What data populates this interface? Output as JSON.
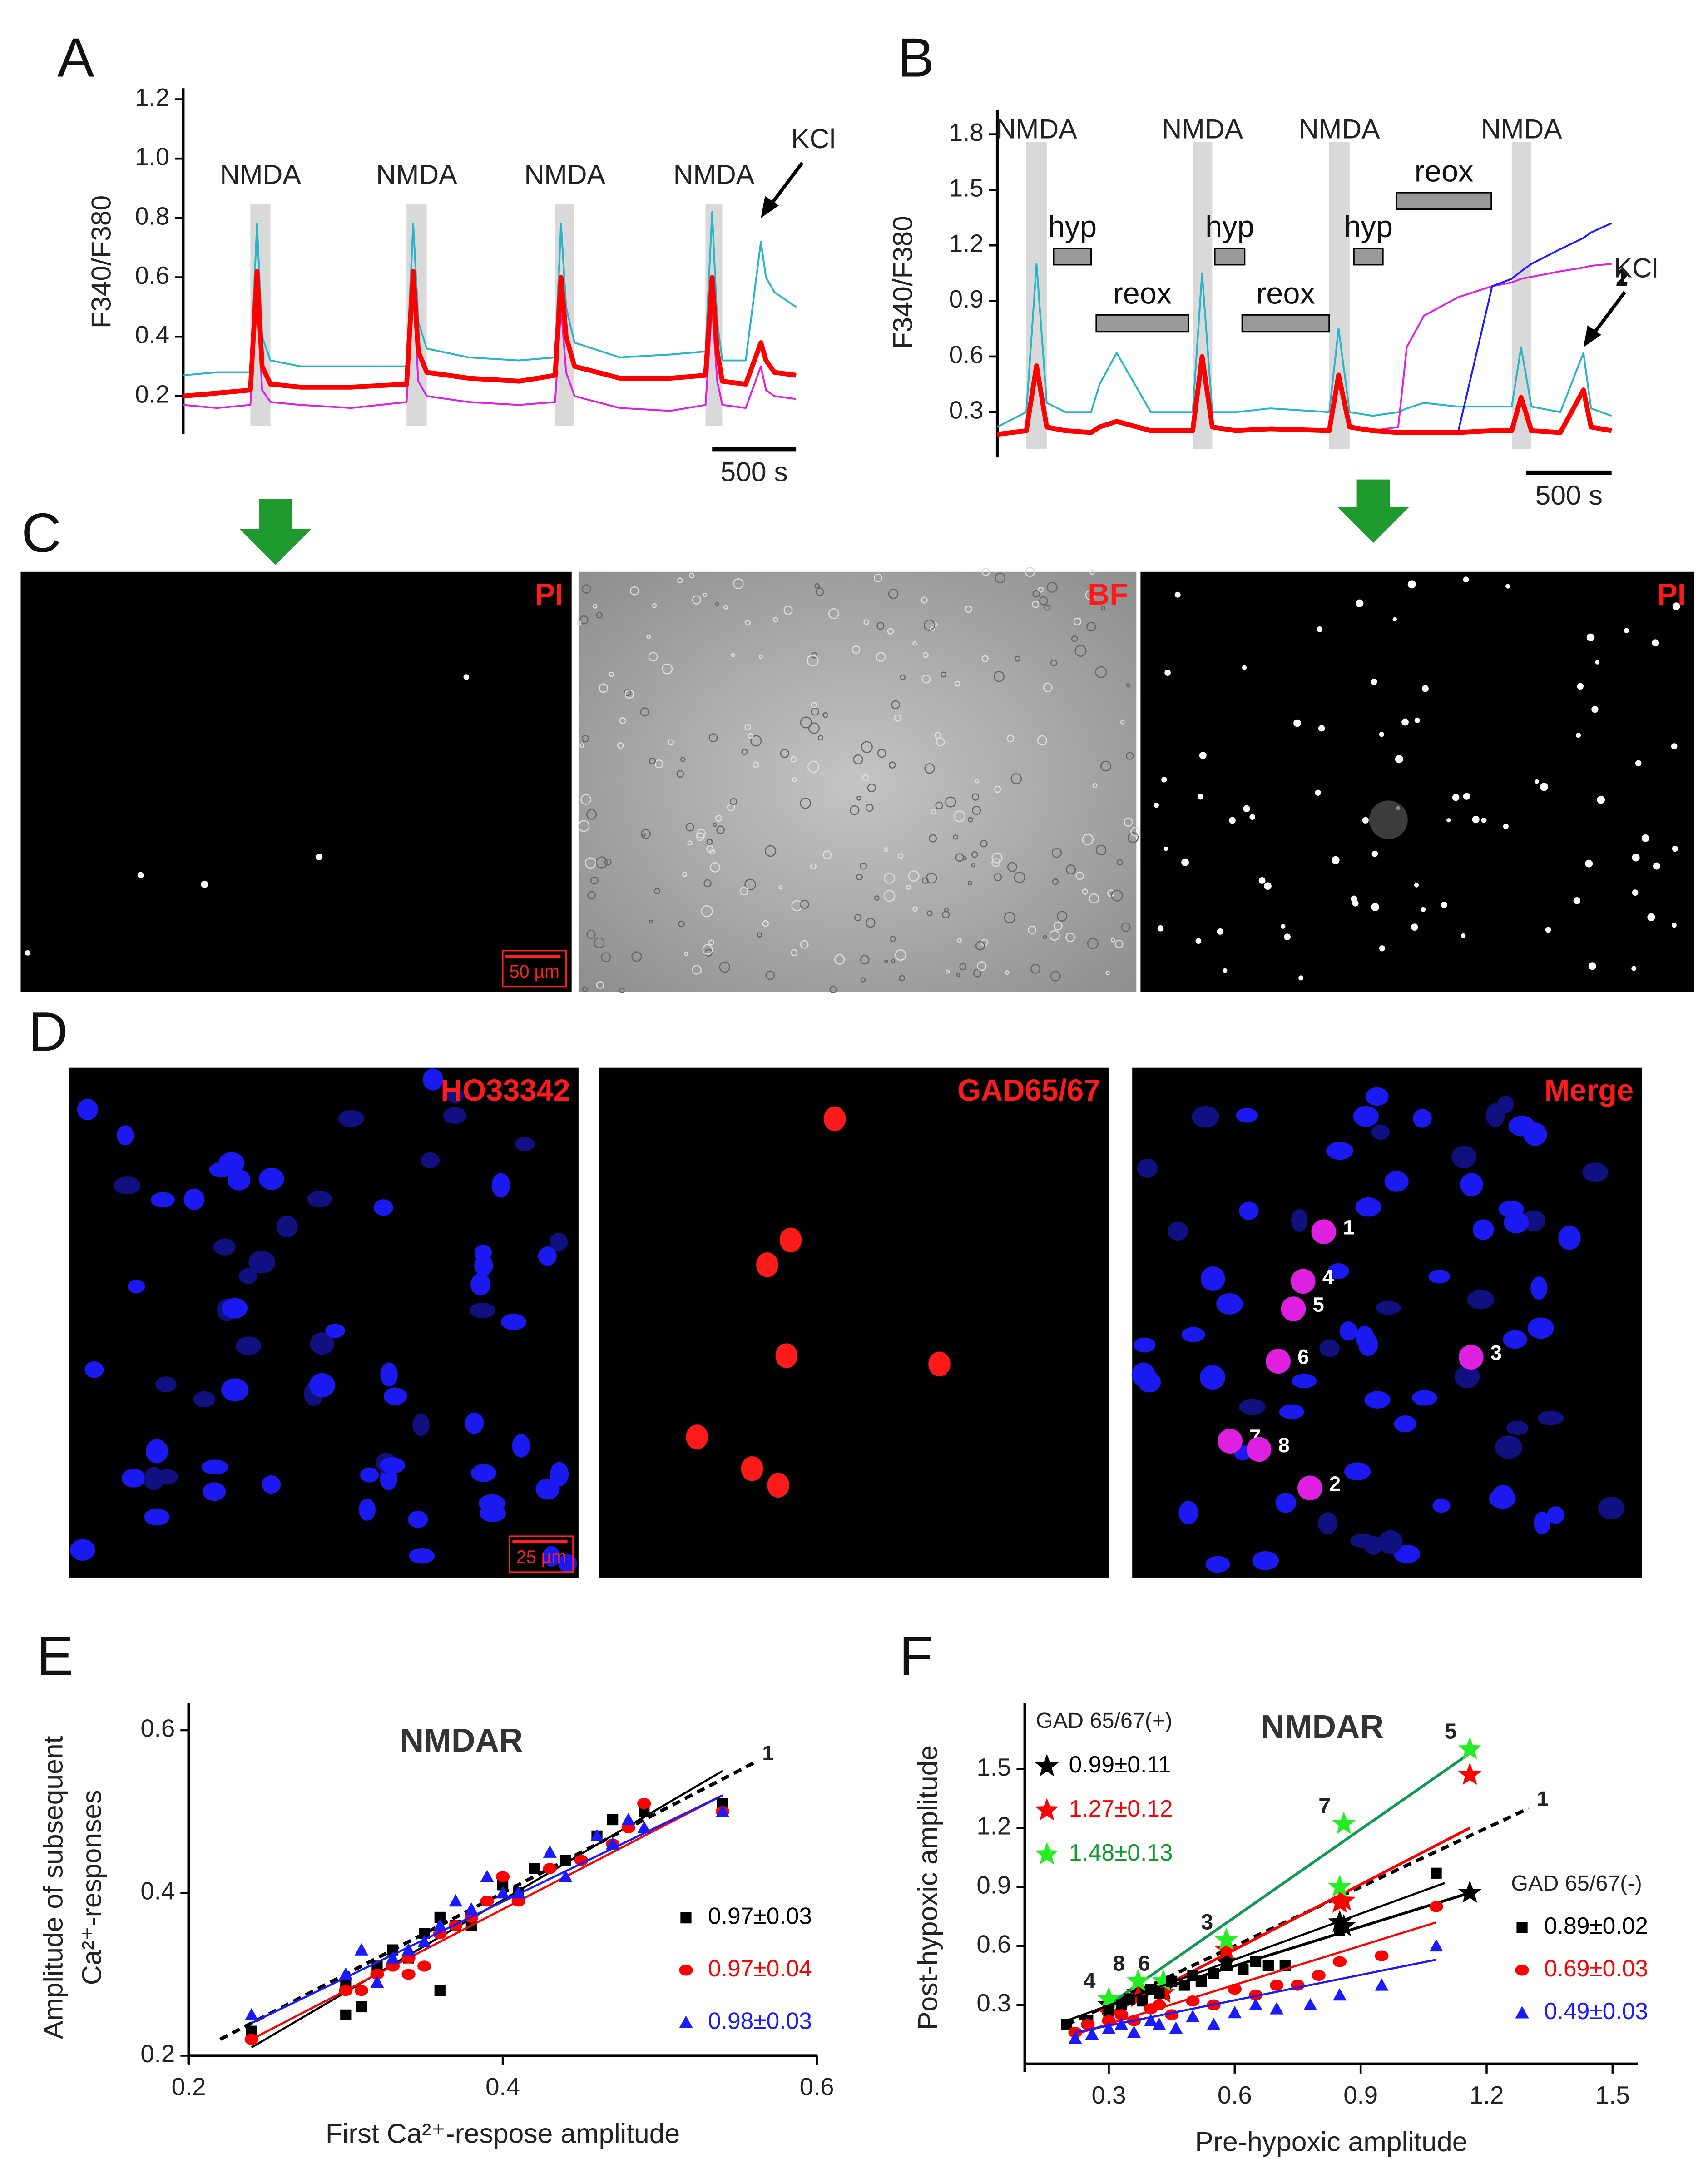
{
  "chart_data": [
    {
      "type": "line",
      "panel": "A",
      "y_label": "F340/F380",
      "xlim": [
        0,
        3650
      ],
      "ylim": [
        0.1,
        1.2
      ],
      "yticks": [
        0.2,
        0.4,
        0.6,
        0.8,
        {
          "value": 1,
          "label": "1.0"
        },
        1.2
      ],
      "x": [
        0,
        200,
        400,
        440,
        470,
        520,
        700,
        1000,
        1330,
        1370,
        1400,
        1450,
        1700,
        2000,
        2215,
        2250,
        2280,
        2330,
        2600,
        2900,
        3110,
        3150,
        3180,
        3210,
        3350,
        3440,
        3470,
        3520,
        3650
      ],
      "series": [
        {
          "color": "#27b5c9",
          "values": [
            0.27,
            0.28,
            0.28,
            0.78,
            0.4,
            0.32,
            0.3,
            0.3,
            0.3,
            0.78,
            0.45,
            0.36,
            0.33,
            0.32,
            0.33,
            0.78,
            0.5,
            0.38,
            0.33,
            0.34,
            0.35,
            0.82,
            0.45,
            0.32,
            0.32,
            0.72,
            0.6,
            0.55,
            0.5
          ]
        },
        {
          "color": "#e020e0",
          "values": [
            0.17,
            0.16,
            0.17,
            0.55,
            0.22,
            0.18,
            0.17,
            0.16,
            0.18,
            0.55,
            0.25,
            0.2,
            0.18,
            0.17,
            0.18,
            0.5,
            0.28,
            0.2,
            0.16,
            0.15,
            0.17,
            0.5,
            0.25,
            0.17,
            0.16,
            0.3,
            0.22,
            0.2,
            0.19
          ]
        },
        {
          "color": "#ff0000",
          "values": [
            0.2,
            0.21,
            0.22,
            0.62,
            0.3,
            0.24,
            0.23,
            0.23,
            0.24,
            0.62,
            0.35,
            0.28,
            0.26,
            0.25,
            0.27,
            0.6,
            0.4,
            0.3,
            0.26,
            0.26,
            0.27,
            0.6,
            0.35,
            0.25,
            0.24,
            0.38,
            0.32,
            0.28,
            0.27
          ]
        }
      ],
      "stimuli": [
        {
          "label": "NMDA",
          "start": 400,
          "end": 520
        },
        {
          "label": "NMDA",
          "start": 1330,
          "end": 1450
        },
        {
          "label": "NMDA",
          "start": 2215,
          "end": 2330
        },
        {
          "label": "NMDA",
          "start": 3110,
          "end": 3210
        }
      ],
      "arrows": [
        {
          "label": "KCl",
          "x": 3440,
          "y": 0.8
        }
      ],
      "scale_bar": {
        "value": 500,
        "label": "500 s"
      }
    },
    {
      "type": "line",
      "panel": "B",
      "y_label": "F340/F380",
      "xlim": [
        0,
        3600
      ],
      "ylim": [
        0.1,
        1.87
      ],
      "yticks": [
        0.3,
        0.6,
        0.9,
        1.2,
        1.5,
        1.8
      ],
      "x": [
        0,
        170,
        230,
        290,
        400,
        550,
        600,
        700,
        900,
        1145,
        1200,
        1260,
        1400,
        1600,
        1945,
        2000,
        2065,
        2200,
        2350,
        2400,
        2500,
        2700,
        2900,
        3015,
        3070,
        3130,
        3300,
        3435,
        3480,
        3600
      ],
      "series": [
        {
          "color": "#27b5c9",
          "values": [
            0.22,
            0.3,
            1.1,
            0.35,
            0.3,
            0.3,
            0.45,
            0.62,
            0.3,
            0.3,
            1.05,
            0.3,
            0.3,
            0.32,
            0.3,
            0.75,
            0.3,
            0.28,
            0.3,
            0.32,
            0.35,
            0.33,
            0.33,
            0.33,
            0.65,
            0.33,
            0.3,
            0.62,
            0.32,
            0.28
          ]
        },
        {
          "name": "2",
          "color": "#e020e0",
          "values": [
            0.18,
            0.2,
            0.55,
            0.22,
            0.2,
            0.19,
            0.22,
            0.25,
            0.2,
            0.2,
            0.6,
            0.22,
            0.2,
            0.21,
            0.2,
            0.5,
            0.22,
            0.2,
            0.22,
            0.65,
            0.82,
            0.92,
            0.98,
            1.0,
            1.02,
            1.03,
            1.06,
            1.08,
            1.09,
            1.1
          ]
        },
        {
          "name": "1",
          "color": "#1a1aff",
          "values": [
            0.18,
            0.2,
            0.55,
            0.22,
            0.2,
            0.19,
            0.22,
            0.25,
            0.2,
            0.2,
            0.6,
            0.22,
            0.2,
            0.21,
            0.2,
            0.5,
            0.22,
            0.2,
            0.19,
            0.19,
            0.19,
            0.19,
            0.98,
            1.02,
            1.06,
            1.1,
            1.18,
            1.24,
            1.27,
            1.32
          ]
        },
        {
          "color": "#ff0000",
          "values": [
            0.18,
            0.2,
            0.55,
            0.22,
            0.2,
            0.19,
            0.22,
            0.25,
            0.2,
            0.2,
            0.6,
            0.22,
            0.2,
            0.21,
            0.2,
            0.5,
            0.22,
            0.2,
            0.19,
            0.19,
            0.19,
            0.19,
            0.2,
            0.2,
            0.38,
            0.2,
            0.19,
            0.42,
            0.22,
            0.2
          ]
        }
      ],
      "stimuli": [
        {
          "label": "NMDA",
          "start": 170,
          "end": 290
        },
        {
          "label": "NMDA",
          "start": 1145,
          "end": 1260
        },
        {
          "label": "NMDA",
          "start": 1945,
          "end": 2065
        },
        {
          "label": "NMDA",
          "start": 3015,
          "end": 3130
        }
      ],
      "bars": [
        {
          "label": "hyp",
          "start": 330,
          "end": 550,
          "level": 1.14
        },
        {
          "label": "reox",
          "start": 580,
          "end": 1120,
          "level": 0.78
        },
        {
          "label": "hyp",
          "start": 1275,
          "end": 1450,
          "level": 1.14
        },
        {
          "label": "reox",
          "start": 1435,
          "end": 1945,
          "level": 0.78
        },
        {
          "label": "hyp",
          "start": 2090,
          "end": 2260,
          "level": 1.14
        },
        {
          "label": "reox",
          "start": 2340,
          "end": 2895,
          "level": 1.44
        }
      ],
      "arrows": [
        {
          "label": "KCl",
          "x": 3435,
          "y": 0.65
        }
      ],
      "scale_bar": {
        "value": 500,
        "label": "500 s"
      }
    },
    {
      "type": "scatter",
      "panel": "E",
      "title": "NMDAR",
      "x_label": "First Ca²⁺-respose amplitude",
      "y_label": [
        "Amplitude of subsequent",
        "Ca²⁺-responses"
      ],
      "xlim": [
        0.2,
        0.6
      ],
      "ylim": [
        0.2,
        0.62
      ],
      "xticks": [
        0.2,
        0.4,
        0.6
      ],
      "yticks": [
        0.2,
        0.4,
        0.6
      ],
      "identity": {
        "label": "1",
        "line": [
          [
            0.22,
            0.22
          ],
          [
            0.56,
            0.56
          ]
        ]
      },
      "series": [
        {
          "name": "0.97±0.03",
          "color": "#000000",
          "marker": "square",
          "x": [
            0.24,
            0.3,
            0.3,
            0.31,
            0.32,
            0.33,
            0.34,
            0.35,
            0.36,
            0.36,
            0.37,
            0.38,
            0.4,
            0.41,
            0.42,
            0.44,
            0.46,
            0.47,
            0.49,
            0.54
          ],
          "values": [
            0.23,
            0.25,
            0.29,
            0.26,
            0.31,
            0.33,
            0.32,
            0.35,
            0.28,
            0.37,
            0.36,
            0.36,
            0.41,
            0.4,
            0.43,
            0.44,
            0.47,
            0.49,
            0.5,
            0.51
          ],
          "fit": [
            [
              0.24,
              0.21
            ],
            [
              0.54,
              0.55
            ]
          ]
        },
        {
          "name": "0.97±0.04",
          "color": "#ff0000",
          "marker": "circle",
          "x": [
            0.24,
            0.3,
            0.31,
            0.32,
            0.33,
            0.34,
            0.34,
            0.35,
            0.36,
            0.37,
            0.38,
            0.39,
            0.4,
            0.41,
            0.43,
            0.45,
            0.47,
            0.48,
            0.49,
            0.54
          ],
          "values": [
            0.22,
            0.28,
            0.28,
            0.3,
            0.31,
            0.3,
            0.32,
            0.31,
            0.35,
            0.36,
            0.37,
            0.39,
            0.42,
            0.39,
            0.43,
            0.44,
            0.46,
            0.48,
            0.51,
            0.5
          ],
          "fit": [
            [
              0.24,
              0.22
            ],
            [
              0.54,
              0.52
            ]
          ]
        },
        {
          "name": "0.98±0.03",
          "color": "#1a1aff",
          "marker": "triangle",
          "x": [
            0.24,
            0.3,
            0.31,
            0.32,
            0.33,
            0.34,
            0.35,
            0.36,
            0.37,
            0.38,
            0.39,
            0.4,
            0.41,
            0.43,
            0.44,
            0.46,
            0.47,
            0.48,
            0.49,
            0.54
          ],
          "values": [
            0.25,
            0.3,
            0.33,
            0.29,
            0.32,
            0.33,
            0.34,
            0.36,
            0.39,
            0.38,
            0.42,
            0.4,
            0.4,
            0.45,
            0.42,
            0.47,
            0.46,
            0.49,
            0.48,
            0.5
          ],
          "fit": [
            [
              0.24,
              0.24
            ],
            [
              0.54,
              0.52
            ]
          ]
        }
      ]
    },
    {
      "type": "scatter",
      "panel": "F",
      "title": "NMDAR",
      "x_label": "Pre-hypoxic amplitude",
      "y_label": [
        "Post-hypoxic amplitude"
      ],
      "xlim": [
        0.1,
        1.56
      ],
      "ylim": [
        0,
        1.78
      ],
      "xticks": [
        0.3,
        0.6,
        0.9,
        1.2,
        1.5
      ],
      "yticks": [
        0.3,
        0.6,
        0.9,
        1.2,
        1.5
      ],
      "identity": {
        "label": "1",
        "line": [
          [
            0.2,
            0.2
          ],
          [
            1.3,
            1.3
          ]
        ]
      },
      "groups": [
        {
          "title": "GAD 65/67(+)",
          "series": [
            {
              "name": "0.99±0.11",
              "color": "#000000",
              "marker": "star",
              "x": [
                0.3,
                0.37,
                0.43,
                0.58,
                0.85,
                0.86,
                1.16
              ],
              "values": [
                0.3,
                0.36,
                0.38,
                0.52,
                0.72,
                0.7,
                0.87
              ],
              "fit": [
                [
                  0.3,
                  0.3
                ],
                [
                  1.16,
                  0.87
                ]
              ]
            },
            {
              "name": "1.27±0.12",
              "color": "#ff0000",
              "marker": "star",
              "x": [
                0.3,
                0.37,
                0.43,
                0.58,
                0.85,
                0.86,
                1.16
              ],
              "values": [
                0.26,
                0.34,
                0.36,
                0.58,
                0.82,
                0.83,
                1.47
              ],
              "fit": [
                [
                  0.3,
                  0.25
                ],
                [
                  1.16,
                  1.2
                ]
              ]
            },
            {
              "name": "1.48±0.13",
              "color": "#22ee22",
              "marker": "star",
              "x": [
                0.3,
                0.37,
                0.43,
                0.58,
                0.85,
                0.86,
                1.16
              ],
              "values": [
                0.33,
                0.42,
                0.42,
                0.63,
                0.9,
                1.22,
                1.6
              ],
              "fit": [
                [
                  0.3,
                  0.3
                ],
                [
                  1.16,
                  1.58
                ]
              ]
            }
          ]
        },
        {
          "title": "GAD 65/67(-)",
          "series": [
            {
              "name": "0.89±0.02",
              "color": "#000000",
              "marker": "square",
              "x": [
                0.2,
                0.25,
                0.3,
                0.33,
                0.35,
                0.38,
                0.4,
                0.42,
                0.45,
                0.48,
                0.5,
                0.52,
                0.55,
                0.58,
                0.62,
                0.65,
                0.68,
                0.72,
                0.85,
                1.08
              ],
              "values": [
                0.2,
                0.22,
                0.27,
                0.3,
                0.33,
                0.32,
                0.38,
                0.36,
                0.42,
                0.4,
                0.45,
                0.42,
                0.46,
                0.5,
                0.48,
                0.52,
                0.5,
                0.5,
                0.68,
                0.97
              ],
              "fit": [
                [
                  0.2,
                  0.22
                ],
                [
                  1.1,
                  0.92
                ]
              ]
            },
            {
              "name": "0.69±0.03",
              "color": "#ff0000",
              "marker": "circle",
              "x": [
                0.22,
                0.25,
                0.3,
                0.33,
                0.36,
                0.4,
                0.42,
                0.45,
                0.5,
                0.55,
                0.6,
                0.65,
                0.7,
                0.75,
                0.8,
                0.85,
                0.95,
                1.08
              ],
              "values": [
                0.16,
                0.2,
                0.22,
                0.25,
                0.22,
                0.28,
                0.3,
                0.25,
                0.32,
                0.3,
                0.38,
                0.35,
                0.4,
                0.4,
                0.45,
                0.52,
                0.55,
                0.8
              ],
              "fit": [
                [
                  0.22,
                  0.15
                ],
                [
                  1.08,
                  0.72
                ]
              ]
            },
            {
              "name": "0.49±0.03",
              "color": "#1a1aff",
              "marker": "triangle",
              "x": [
                0.22,
                0.26,
                0.3,
                0.33,
                0.36,
                0.4,
                0.42,
                0.46,
                0.5,
                0.55,
                0.6,
                0.65,
                0.7,
                0.78,
                0.85,
                0.95,
                1.08
              ],
              "values": [
                0.13,
                0.15,
                0.18,
                0.2,
                0.16,
                0.22,
                0.2,
                0.18,
                0.24,
                0.2,
                0.26,
                0.3,
                0.28,
                0.3,
                0.35,
                0.4,
                0.6
              ],
              "fit": [
                [
                  0.22,
                  0.16
                ],
                [
                  1.08,
                  0.53
                ]
              ]
            }
          ]
        }
      ],
      "annotations": [
        {
          "text": "5",
          "x": 1.16,
          "y": 1.6
        },
        {
          "text": "7",
          "x": 0.86,
          "y": 1.22
        },
        {
          "text": "3",
          "x": 0.58,
          "y": 0.63
        },
        {
          "text": "4",
          "x": 0.3,
          "y": 0.33
        },
        {
          "text": "8",
          "x": 0.37,
          "y": 0.42
        },
        {
          "text": "6",
          "x": 0.43,
          "y": 0.42
        }
      ]
    }
  ],
  "image_panels": [
    {
      "label": "C",
      "images": [
        {
          "channel": "PI",
          "scale_bar": "50 µm"
        },
        {
          "channel": "BF"
        },
        {
          "channel": "PI"
        }
      ]
    },
    {
      "label": "D",
      "images": [
        {
          "channel": "HO33342",
          "scale_bar": "25 µm"
        },
        {
          "channel": "GAD65/67"
        },
        {
          "channel": "Merge",
          "cell_labels": [
            "1",
            "2",
            "3",
            "4",
            "5",
            "6",
            "7",
            "8"
          ]
        }
      ]
    }
  ]
}
